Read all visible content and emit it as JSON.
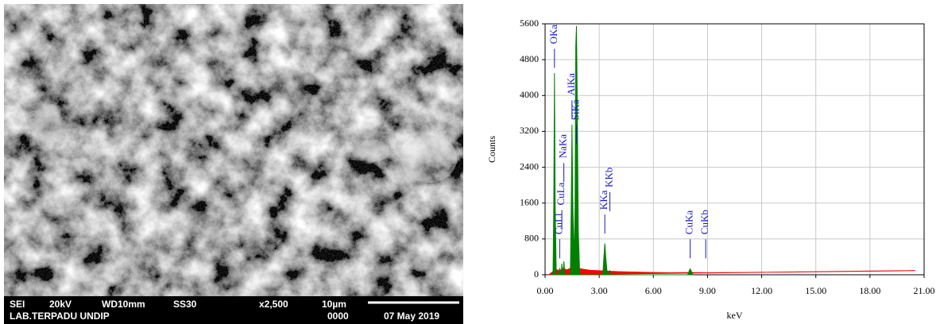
{
  "sem_image": {
    "info_line_1": [
      "SEI",
      "20kV",
      "WD10mm",
      "SS30",
      "x2,500",
      "10µm"
    ],
    "info_line_2": [
      "LAB.TERPADU UNDIP",
      "0000",
      "07 May 2019"
    ]
  },
  "chart_data": {
    "type": "area",
    "xlabel": "keV",
    "ylabel": "Counts",
    "xlim": [
      0,
      21
    ],
    "ylim": [
      0,
      5600
    ],
    "xticks": [
      {
        "value": 0,
        "label": "0.00"
      },
      {
        "value": 3,
        "label": "3.00"
      },
      {
        "value": 6,
        "label": "6.00"
      },
      {
        "value": 9,
        "label": "9.00"
      },
      {
        "value": 12,
        "label": "12.00"
      },
      {
        "value": 15,
        "label": "15.00"
      },
      {
        "value": 18,
        "label": "18.00"
      },
      {
        "value": 21,
        "label": "21.00"
      }
    ],
    "yticks": [
      0,
      800,
      1600,
      2400,
      3200,
      4000,
      4800,
      5600
    ],
    "grid": true,
    "series": [
      {
        "color": "#ff0000",
        "x": [
          0.2,
          0.4,
          0.6,
          0.8,
          1.0,
          1.2,
          1.5,
          2.0,
          2.5,
          3.0,
          3.5,
          4.0,
          4.5,
          5.0,
          5.5,
          6.0,
          7.0,
          8.0,
          9.0,
          10.0,
          11.0,
          12.0,
          13.0,
          14.0,
          15.0,
          16.0,
          17.0,
          18.0,
          19.0,
          20.0,
          20.5
        ],
        "values": [
          0,
          60,
          120,
          90,
          140,
          110,
          160,
          130,
          100,
          90,
          80,
          70,
          65,
          60,
          55,
          50,
          45,
          50,
          45,
          48,
          52,
          55,
          58,
          62,
          66,
          70,
          75,
          80,
          85,
          90,
          95
        ]
      },
      {
        "color": "#008000",
        "x": [
          0.3,
          0.44,
          0.48,
          0.52,
          0.56,
          0.62,
          0.76,
          0.81,
          0.86,
          0.9,
          0.93,
          0.97,
          1.0,
          1.04,
          1.1,
          1.4,
          1.45,
          1.49,
          1.53,
          1.6,
          1.66,
          1.7,
          1.74,
          1.78,
          1.84,
          1.92,
          3.2,
          3.26,
          3.31,
          3.36,
          3.45,
          3.55,
          3.59,
          3.64,
          7.9,
          7.98,
          8.04,
          8.1,
          8.2
        ],
        "values": [
          0,
          0,
          1500,
          4500,
          1500,
          0,
          0,
          150,
          0,
          0,
          250,
          0,
          0,
          300,
          0,
          0,
          1600,
          3350,
          1800,
          300,
          1500,
          5100,
          5550,
          4000,
          1000,
          0,
          0,
          400,
          700,
          400,
          0,
          0,
          100,
          0,
          0,
          80,
          130,
          80,
          0
        ]
      }
    ],
    "annotations": [
      {
        "text": "OKa",
        "x": 0.52,
        "y": 5150
      },
      {
        "text": "CuLl",
        "x": 0.81,
        "y": 900
      },
      {
        "text": "CuLa",
        "x": 0.93,
        "y": 1550
      },
      {
        "text": "NaKa",
        "x": 1.04,
        "y": 2600
      },
      {
        "text": "AlKa",
        "x": 1.49,
        "y": 4000
      },
      {
        "text": "SiKa",
        "x": 1.74,
        "y": 3450
      },
      {
        "text": "KKa",
        "x": 3.31,
        "y": 1450
      },
      {
        "text": "KKb",
        "x": 3.59,
        "y": 1950
      },
      {
        "text": "CuKa",
        "x": 8.04,
        "y": 900
      },
      {
        "text": "CuKb",
        "x": 8.9,
        "y": 900
      }
    ]
  }
}
